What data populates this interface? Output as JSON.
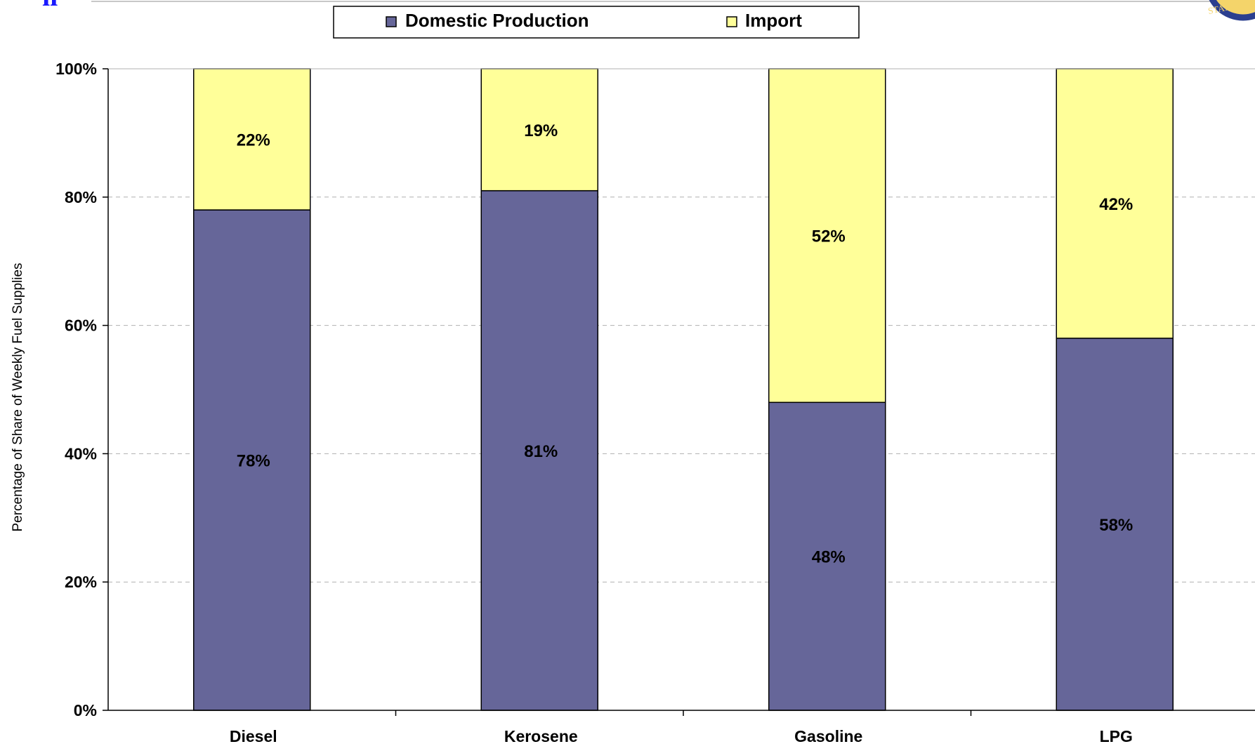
{
  "colors": {
    "domestic": "#666699",
    "import": "#ffff99",
    "grid": "#b0b0b0",
    "seal_ring": "#2b3f8f",
    "seal_fill": "#f4d46a",
    "header_glyph": "#1a1aff"
  },
  "header": {
    "partial_title_glyph": "ıı",
    "seal_text": "STATES OF"
  },
  "chart_data": {
    "type": "bar",
    "stacked": true,
    "title": "",
    "xlabel": "",
    "ylabel": "Percentage of Share of Weekly Fuel Supplies",
    "ylim": [
      0,
      100
    ],
    "yticks": [
      "0%",
      "20%",
      "40%",
      "60%",
      "80%",
      "100%"
    ],
    "ytick_values": [
      0,
      20,
      40,
      60,
      80,
      100
    ],
    "grid": true,
    "legend": "top-center",
    "categories": [
      "Diesel",
      "Kerosene",
      "Gasoline",
      "LPG"
    ],
    "series": [
      {
        "name": "Domestic Production",
        "values": [
          78,
          81,
          48,
          58
        ],
        "labels": [
          "78%",
          "81%",
          "48%",
          "58%"
        ]
      },
      {
        "name": "Import",
        "values": [
          22,
          19,
          52,
          42
        ],
        "labels": [
          "22%",
          "19%",
          "52%",
          "42%"
        ]
      }
    ]
  }
}
